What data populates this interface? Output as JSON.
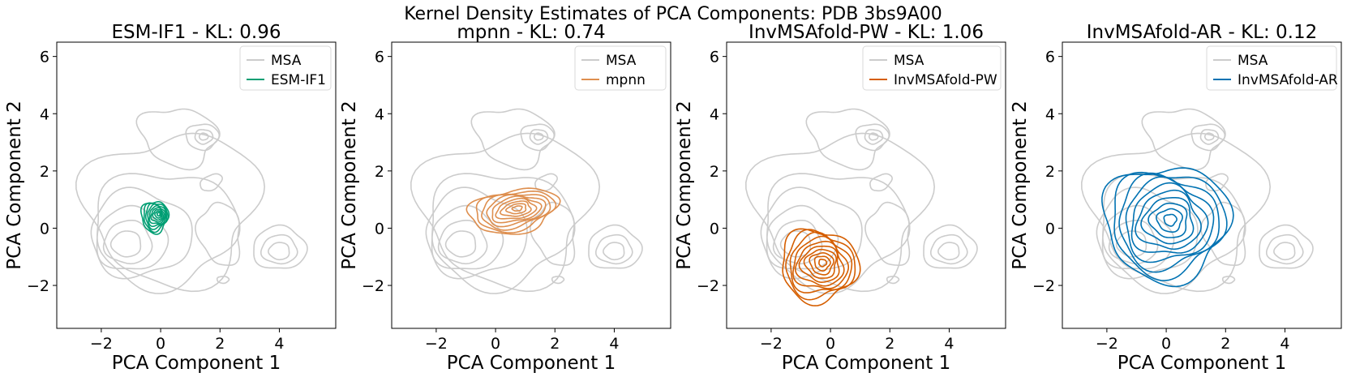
{
  "figure": {
    "suptitle": "Kernel Density Estimates of PCA Components: PDB 3bs9A00"
  },
  "chart_data": [
    {
      "type": "kde-contour",
      "title": "ESM-IF1 - KL: 0.96",
      "xlabel": "PCA Component 1",
      "ylabel": "PCA Component 2",
      "xlim": [
        -3.5,
        5.9
      ],
      "ylim": [
        -3.5,
        6.5
      ],
      "xticks": [
        -2,
        0,
        2,
        4
      ],
      "yticks": [
        -2,
        0,
        2,
        4,
        6
      ],
      "grid": false,
      "legend_position": "top-right",
      "series": [
        {
          "name": "MSA",
          "color": "#cccccc",
          "role": "reference"
        },
        {
          "name": "ESM-IF1",
          "color": "#009e73",
          "center": [
            -0.2,
            0.4
          ],
          "spread": [
            0.45,
            0.55
          ],
          "rotation": 0,
          "levels": 9
        }
      ]
    },
    {
      "type": "kde-contour",
      "title": "mpnn - KL: 0.74",
      "xlabel": "PCA Component 1",
      "ylabel": "PCA Component 2",
      "xlim": [
        -3.5,
        5.9
      ],
      "ylim": [
        -3.5,
        6.5
      ],
      "xticks": [
        -2,
        0,
        2,
        4
      ],
      "yticks": [
        -2,
        0,
        2,
        4,
        6
      ],
      "grid": false,
      "legend_position": "top-right",
      "series": [
        {
          "name": "MSA",
          "color": "#cccccc",
          "role": "reference"
        },
        {
          "name": "mpnn",
          "color": "#de8f4f",
          "center": [
            0.6,
            0.6
          ],
          "spread": [
            1.5,
            0.75
          ],
          "rotation": 10,
          "levels": 9
        }
      ]
    },
    {
      "type": "kde-contour",
      "title": "InvMSAfold-PW - KL: 1.06",
      "xlabel": "PCA Component 1",
      "ylabel": "PCA Component 2",
      "xlim": [
        -3.5,
        5.9
      ],
      "ylim": [
        -3.5,
        6.5
      ],
      "xticks": [
        -2,
        0,
        2,
        4
      ],
      "yticks": [
        -2,
        0,
        2,
        4,
        6
      ],
      "grid": false,
      "legend_position": "top-right",
      "series": [
        {
          "name": "MSA",
          "color": "#cccccc",
          "role": "reference"
        },
        {
          "name": "InvMSAfold-PW",
          "color": "#d55e00",
          "center": [
            -0.4,
            -1.3
          ],
          "spread": [
            1.3,
            1.25
          ],
          "rotation": -20,
          "levels": 10
        }
      ]
    },
    {
      "type": "kde-contour",
      "title": "InvMSAfold-AR - KL: 0.12",
      "xlabel": "PCA Component 1",
      "ylabel": "PCA Component 2",
      "xlim": [
        -3.5,
        5.9
      ],
      "ylim": [
        -3.5,
        6.5
      ],
      "xticks": [
        -2,
        0,
        2,
        4
      ],
      "yticks": [
        -2,
        0,
        2,
        4,
        6
      ],
      "grid": false,
      "legend_position": "top-right",
      "series": [
        {
          "name": "MSA",
          "color": "#cccccc",
          "role": "reference"
        },
        {
          "name": "InvMSAfold-AR",
          "color": "#0072b2",
          "center": [
            0.0,
            0.2
          ],
          "spread": [
            2.1,
            2.0
          ],
          "rotation": 0,
          "levels": 10
        }
      ]
    }
  ]
}
